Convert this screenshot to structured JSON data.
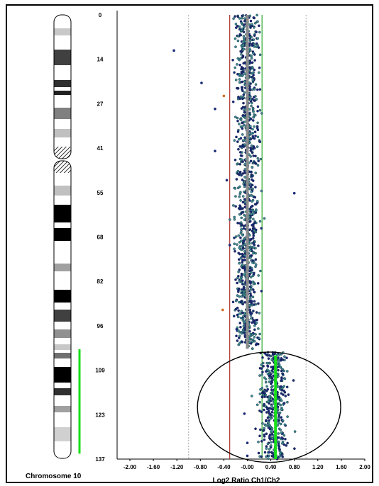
{
  "chart_data": {
    "type": "scatter",
    "xlabel": "Log2 Ratio Ch1/Ch2",
    "chromosome_label": "Chromosome 10",
    "xlim": [
      -2.0,
      2.0
    ],
    "ylim": [
      0,
      137
    ],
    "x_ticks": [
      "-2.00",
      "-1.60",
      "-1.20",
      "-0.80",
      "-0.40",
      "-0.00",
      "0.40",
      "0.80",
      "1.20",
      "1.60",
      "2.00"
    ],
    "y_ticks": [
      "0",
      "14",
      "27",
      "41",
      "55",
      "68",
      "82",
      "96",
      "109",
      "123",
      "137"
    ],
    "dashed_lines_x": [
      -1.0,
      1.0
    ],
    "red_line_x": -0.3,
    "green_line_x": 0.25,
    "gray_segment": {
      "x": 0.0,
      "y": [
        0,
        103
      ]
    },
    "green_segment": {
      "x": 0.48,
      "y": [
        105,
        137
      ]
    },
    "highlight_ellipse": {
      "cx": 0.37,
      "cy": 121,
      "rx": 1.22,
      "ry": 17
    },
    "ideogram_highlight": {
      "y": [
        104,
        136
      ]
    },
    "clusters": [
      {
        "y": [
          0,
          103
        ],
        "x_center": 0.0,
        "x_spread": 0.2,
        "count": 1100
      },
      {
        "y": [
          104,
          137
        ],
        "x_center": 0.45,
        "x_spread": 0.24,
        "count": 420
      }
    ],
    "outliers": [
      {
        "x": -1.25,
        "y": 11
      },
      {
        "x": -0.78,
        "y": 21
      },
      {
        "x": -0.4,
        "y": 25
      },
      {
        "x": -0.55,
        "y": 29
      },
      {
        "x": -0.55,
        "y": 42
      },
      {
        "x": -0.35,
        "y": 51
      },
      {
        "x": 0.8,
        "y": 55
      },
      {
        "x": -0.3,
        "y": 71
      },
      {
        "x": -0.42,
        "y": 91
      },
      {
        "x": -0.18,
        "y": 97
      },
      {
        "x": -0.05,
        "y": 123
      },
      {
        "x": 0.0,
        "y": 132
      },
      {
        "x": 0.0,
        "y": 136
      }
    ],
    "colors": {
      "point_teal": "#3f8f8c",
      "point_navy": "#1a2a78",
      "point_orange": "#d2691e",
      "red_line": "#b03030",
      "green_line": "#2ea82e",
      "gray_segment": "#8c8c8c",
      "green_segment": "#18e018",
      "dashed_line": "#aaaaaa"
    }
  }
}
